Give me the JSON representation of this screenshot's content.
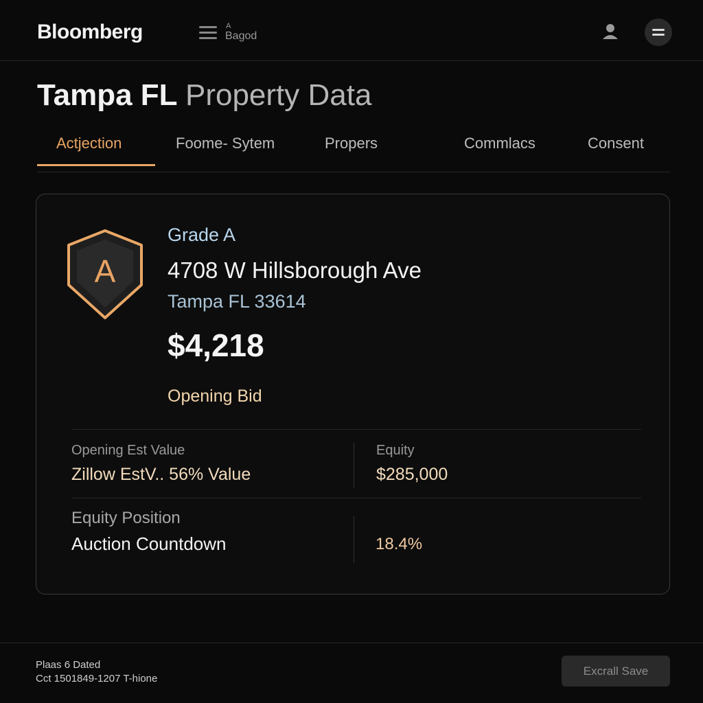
{
  "header": {
    "brand": "Bloomberg",
    "menu_label_top": "A",
    "menu_label": "Bagod"
  },
  "title": {
    "primary": "Tampa FL",
    "secondary": "Property Data"
  },
  "tabs": {
    "items": [
      "Actjection",
      "Foome- Sytem",
      "Propers",
      "Commlacs",
      "Consent"
    ]
  },
  "card": {
    "badge": "A",
    "grade": "Grade A",
    "address": "4708 W Hillsborough Ave",
    "city": "Tampa FL 33614",
    "price": "$4,218",
    "price_label": "Opening Bid",
    "stats": [
      [
        {
          "label": "Opening Est Value",
          "value": "Zillow EstV.. 56% Value"
        },
        {
          "label": "Equity",
          "value": "$285,000"
        }
      ],
      [
        {
          "label": "Equity Position",
          "value": "Auction Countdown"
        },
        {
          "value": "18.4%"
        }
      ]
    ]
  },
  "footer": {
    "line1": "Plaas 6 Dated",
    "line2": "Cct 1501849-1207  T-hione",
    "button": "Excrall Save"
  }
}
